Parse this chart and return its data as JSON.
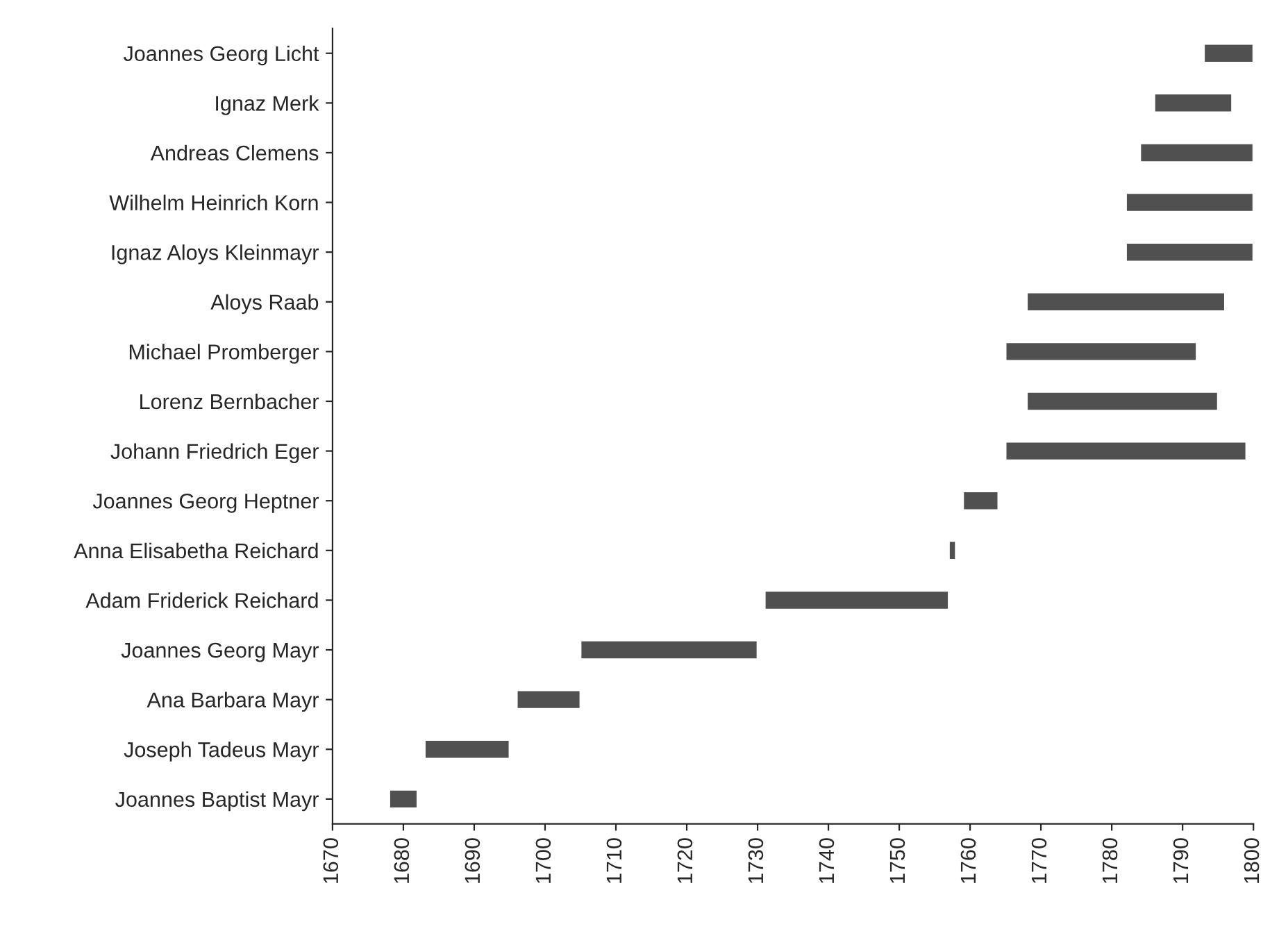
{
  "chart_data": {
    "type": "bar",
    "orientation": "horizontal",
    "color": "#505050",
    "categories": [
      "Joannes Georg Licht",
      "Ignaz Merk",
      "Andreas Clemens",
      "Wilhelm Heinrich Korn",
      "Ignaz Aloys Kleinmayr",
      "Aloys Raab",
      "Michael Promberger",
      "Lorenz Bernbacher",
      "Johann Friedrich Eger",
      "Joannes Georg Heptner",
      "Anna Elisabetha Reichard",
      "Adam Friderick Reichard",
      "Joannes Georg Mayr",
      "Ana Barbara Mayr",
      "Joseph Tadeus Mayr",
      "Joannes Baptist Mayr"
    ],
    "base": [
      1793,
      1786,
      1784,
      1782,
      1782,
      1768,
      1765,
      1768,
      1765,
      1759,
      1757,
      1731,
      1705,
      1696,
      1683,
      1678
    ],
    "values": [
      7,
      11,
      16,
      18,
      18,
      28,
      27,
      27,
      34,
      5,
      1,
      26,
      25,
      9,
      12,
      4
    ],
    "xlim": [
      1670,
      1800
    ],
    "xticks": [
      1670,
      1680,
      1690,
      1700,
      1710,
      1720,
      1730,
      1740,
      1750,
      1760,
      1770,
      1780,
      1790,
      1800
    ],
    "grid": false
  }
}
